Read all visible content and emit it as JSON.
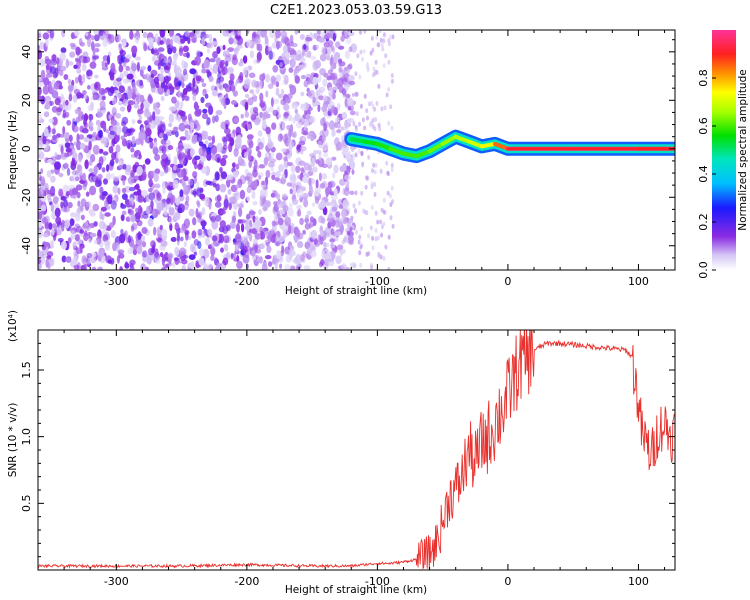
{
  "title": "C2E1.2023.053.03.59.G13",
  "chart_data": [
    {
      "type": "heatmap",
      "xlabel": "Height of straight line (km)",
      "ylabel": "Frequency (Hz)",
      "xlim": [
        -360,
        128
      ],
      "ylim": [
        -50,
        49
      ],
      "xticks": [
        -300,
        -200,
        -100,
        0,
        100
      ],
      "yticks": [
        -40,
        -20,
        0,
        20,
        40
      ],
      "colorbar": {
        "label": "Normalized spectral amplitude",
        "range": [
          0,
          1
        ],
        "ticks": [
          "0.0",
          "0.2",
          "0.4",
          "0.6",
          "0.8"
        ],
        "tick_values": [
          0.0,
          0.2,
          0.4,
          0.6,
          0.8
        ],
        "colormap": "rainbow (white-lavender-violet-blue-cyan-green-yellow-orange-red-magenta)"
      },
      "ridge": {
        "description": "strong narrowband signal near 0 Hz from about -120 km to the top of the plot",
        "x": [
          -120,
          -110,
          -100,
          -90,
          -80,
          -70,
          -60,
          -50,
          -40,
          -30,
          -20,
          -10,
          0,
          50,
          100,
          128
        ],
        "y": [
          4,
          3,
          2,
          0,
          -2,
          -3,
          -1,
          2,
          5,
          3,
          1,
          2,
          0,
          0,
          0,
          0
        ],
        "amplitude": [
          0.5,
          0.55,
          0.55,
          0.6,
          0.6,
          0.6,
          0.6,
          0.65,
          0.65,
          0.7,
          0.7,
          0.75,
          0.95,
          0.95,
          0.95,
          0.9
        ]
      }
    },
    {
      "type": "line",
      "xlabel": "Height of straight line (km)",
      "ylabel": "SNR (10 * v/v)",
      "y_scale_label": "(x10⁴)",
      "xlim": [
        -360,
        128
      ],
      "ylim": [
        0,
        1.8
      ],
      "xticks": [
        -300,
        -200,
        -100,
        0,
        100
      ],
      "yticks": [
        "0.5",
        "1.0",
        "1.5"
      ],
      "ytick_values": [
        0.5,
        1.0,
        1.5
      ],
      "series": [
        {
          "color": "#e8302c",
          "x": [
            -360,
            -300,
            -250,
            -200,
            -150,
            -120,
            -100,
            -90,
            -80,
            -70,
            -60,
            -55,
            -50,
            -45,
            -40,
            -35,
            -30,
            -25,
            -20,
            -15,
            -10,
            -5,
            0,
            5,
            10,
            15,
            20,
            30,
            40,
            50,
            60,
            70,
            80,
            90,
            95,
            100,
            103,
            106,
            110,
            115,
            120,
            125,
            128
          ],
          "y": [
            0.03,
            0.03,
            0.03,
            0.04,
            0.03,
            0.03,
            0.05,
            0.05,
            0.06,
            0.08,
            0.12,
            0.2,
            0.35,
            0.55,
            0.6,
            0.7,
            0.9,
            0.8,
            0.95,
            1.0,
            1.1,
            1.2,
            1.3,
            1.45,
            1.55,
            1.6,
            1.65,
            1.7,
            1.7,
            1.69,
            1.68,
            1.67,
            1.66,
            1.65,
            1.6,
            1.25,
            1.0,
            0.95,
            0.85,
            1.05,
            1.1,
            1.0,
            1.05
          ]
        }
      ]
    }
  ],
  "colors": {
    "ridge_peak": "#ff2020",
    "line": "#e8302c",
    "background": "#ffffff"
  }
}
